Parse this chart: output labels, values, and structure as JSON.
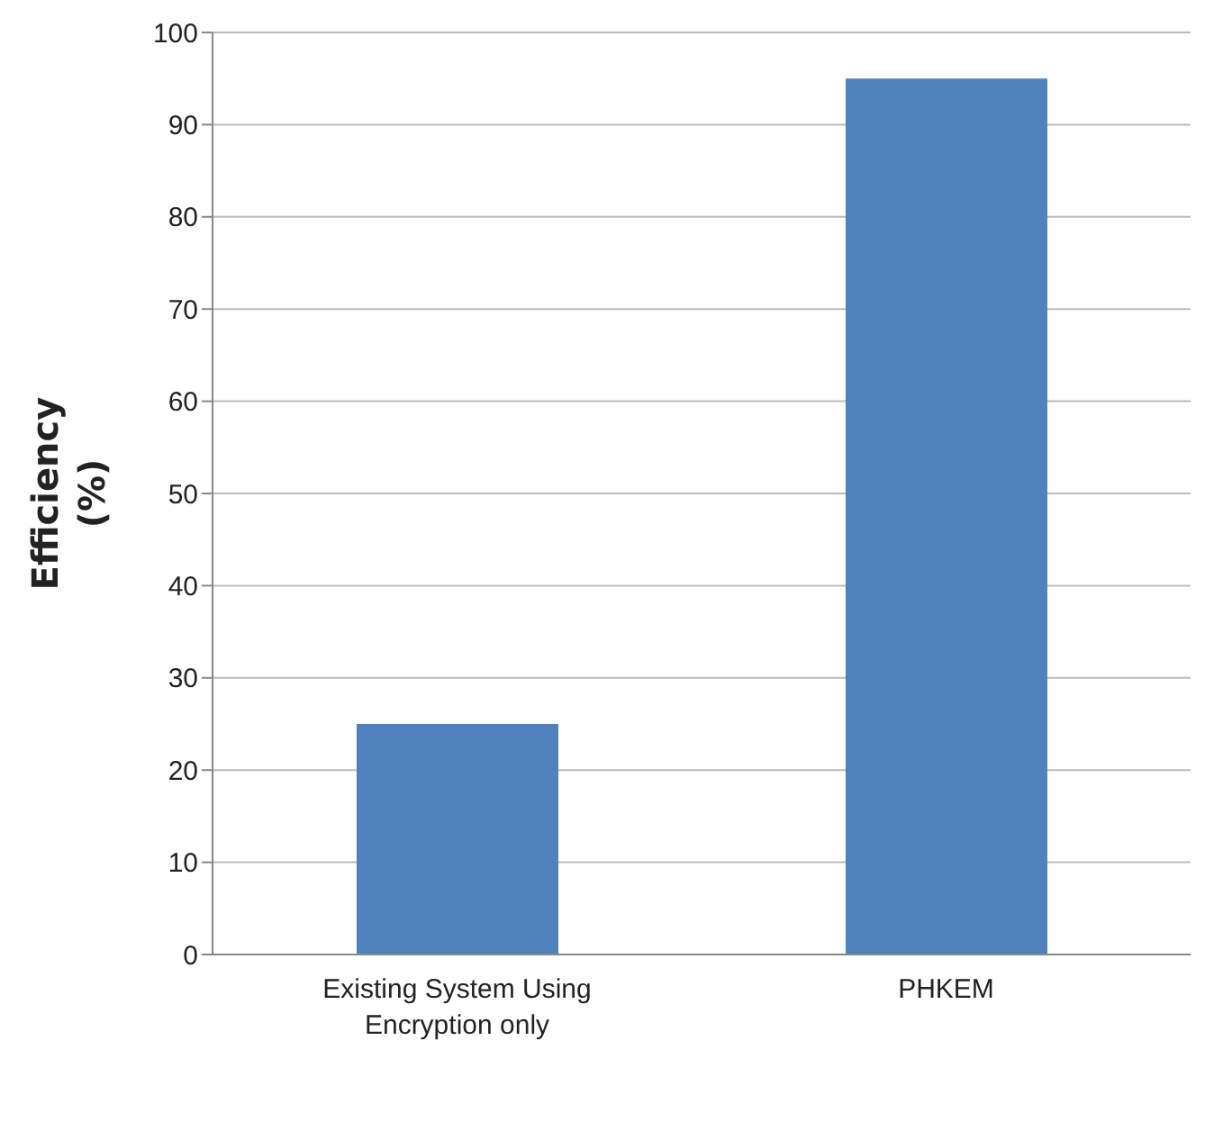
{
  "chart_data": {
    "type": "bar",
    "ylabel": "Efficiency (%)",
    "categories": [
      "Existing System Using Encryption only",
      "PHKEM"
    ],
    "values": [
      25,
      95
    ],
    "color": "#4f81bd",
    "ylim": [
      0,
      100
    ],
    "yticks": [
      0,
      10,
      20,
      30,
      40,
      50,
      60,
      70,
      80,
      90,
      100
    ],
    "grid": "y",
    "legend": false
  }
}
